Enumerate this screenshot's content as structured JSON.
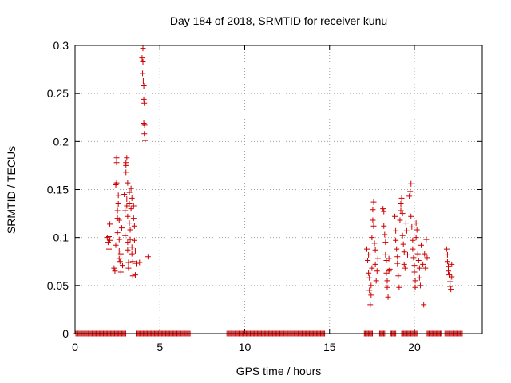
{
  "chart_data": {
    "type": "scatter",
    "title": "Day 184 of 2018, SRMTID for receiver kunu",
    "xlabel": "GPS time / hours",
    "ylabel": "SRMTID / TECUs",
    "xlim": [
      0,
      24
    ],
    "ylim": [
      0,
      0.3
    ],
    "x_ticks": [
      0,
      5,
      10,
      15,
      20
    ],
    "x_tick_labels": [
      "0",
      "5",
      "10",
      "15",
      "20"
    ],
    "y_ticks": [
      0,
      0.05,
      0.1,
      0.15,
      0.2,
      0.25,
      0.3
    ],
    "y_tick_labels": [
      "0",
      "0.05",
      "0.1",
      "0.15",
      "0.2",
      "0.25",
      "0.3"
    ],
    "grid": true,
    "marker": "plus",
    "color": "#cc0000",
    "series": [
      {
        "name": "SRMTID",
        "points": [
          [
            1.9,
            0.1
          ],
          [
            1.95,
            0.095
          ],
          [
            2.0,
            0.088
          ],
          [
            2.0,
            0.101
          ],
          [
            2.05,
            0.114
          ],
          [
            2.05,
            0.097
          ],
          [
            2.3,
            0.068
          ],
          [
            2.35,
            0.065
          ],
          [
            2.4,
            0.092
          ],
          [
            2.4,
            0.155
          ],
          [
            2.45,
            0.157
          ],
          [
            2.45,
            0.178
          ],
          [
            2.45,
            0.183
          ],
          [
            2.5,
            0.12
          ],
          [
            2.5,
            0.105
          ],
          [
            2.5,
            0.128
          ],
          [
            2.55,
            0.135
          ],
          [
            2.55,
            0.144
          ],
          [
            2.6,
            0.118
          ],
          [
            2.6,
            0.098
          ],
          [
            2.6,
            0.078
          ],
          [
            2.6,
            0.086
          ],
          [
            2.65,
            0.075
          ],
          [
            2.7,
            0.064
          ],
          [
            2.7,
            0.083
          ],
          [
            2.75,
            0.11
          ],
          [
            2.8,
            0.071
          ],
          [
            2.9,
            0.145
          ],
          [
            2.95,
            0.128
          ],
          [
            2.95,
            0.102
          ],
          [
            3.0,
            0.168
          ],
          [
            3.0,
            0.178
          ],
          [
            3.0,
            0.175
          ],
          [
            3.05,
            0.183
          ],
          [
            3.05,
            0.14
          ],
          [
            3.05,
            0.133
          ],
          [
            3.1,
            0.157
          ],
          [
            3.1,
            0.122
          ],
          [
            3.1,
            0.087
          ],
          [
            3.1,
            0.095
          ],
          [
            3.15,
            0.074
          ],
          [
            3.15,
            0.068
          ],
          [
            3.2,
            0.147
          ],
          [
            3.2,
            0.135
          ],
          [
            3.2,
            0.115
          ],
          [
            3.25,
            0.108
          ],
          [
            3.25,
            0.098
          ],
          [
            3.3,
            0.13
          ],
          [
            3.3,
            0.151
          ],
          [
            3.35,
            0.141
          ],
          [
            3.35,
            0.09
          ],
          [
            3.35,
            0.083
          ],
          [
            3.4,
            0.075
          ],
          [
            3.4,
            0.06
          ],
          [
            3.45,
            0.133
          ],
          [
            3.45,
            0.12
          ],
          [
            3.5,
            0.112
          ],
          [
            3.5,
            0.097
          ],
          [
            3.55,
            0.086
          ],
          [
            3.55,
            0.061
          ],
          [
            3.6,
            0.073
          ],
          [
            3.8,
            0.074
          ],
          [
            3.95,
            0.287
          ],
          [
            3.98,
            0.271
          ],
          [
            4.0,
            0.297
          ],
          [
            4.0,
            0.283
          ],
          [
            4.02,
            0.263
          ],
          [
            4.05,
            0.258
          ],
          [
            4.05,
            0.244
          ],
          [
            4.08,
            0.24
          ],
          [
            4.05,
            0.219
          ],
          [
            4.1,
            0.217
          ],
          [
            4.08,
            0.208
          ],
          [
            4.12,
            0.201
          ],
          [
            4.3,
            0.08
          ],
          [
            17.2,
            0.088
          ],
          [
            17.25,
            0.076
          ],
          [
            17.3,
            0.082
          ],
          [
            17.3,
            0.063
          ],
          [
            17.35,
            0.058
          ],
          [
            17.35,
            0.045
          ],
          [
            17.4,
            0.03
          ],
          [
            17.45,
            0.04
          ],
          [
            17.45,
            0.05
          ],
          [
            17.5,
            0.068
          ],
          [
            17.5,
            0.1
          ],
          [
            17.55,
            0.118
          ],
          [
            17.55,
            0.129
          ],
          [
            17.6,
            0.137
          ],
          [
            17.6,
            0.112
          ],
          [
            17.65,
            0.094
          ],
          [
            17.7,
            0.087
          ],
          [
            17.7,
            0.072
          ],
          [
            17.75,
            0.055
          ],
          [
            17.8,
            0.065
          ],
          [
            17.85,
            0.078
          ],
          [
            18.15,
            0.13
          ],
          [
            18.2,
            0.127
          ],
          [
            18.2,
            0.112
          ],
          [
            18.25,
            0.103
          ],
          [
            18.3,
            0.095
          ],
          [
            18.3,
            0.082
          ],
          [
            18.35,
            0.076
          ],
          [
            18.35,
            0.063
          ],
          [
            18.4,
            0.055
          ],
          [
            18.4,
            0.048
          ],
          [
            18.45,
            0.038
          ],
          [
            18.5,
            0.065
          ],
          [
            18.5,
            0.078
          ],
          [
            18.55,
            0.067
          ],
          [
            18.85,
            0.122
          ],
          [
            18.9,
            0.107
          ],
          [
            18.9,
            0.097
          ],
          [
            18.95,
            0.088
          ],
          [
            19.0,
            0.08
          ],
          [
            19.0,
            0.073
          ],
          [
            19.05,
            0.06
          ],
          [
            19.1,
            0.048
          ],
          [
            19.15,
            0.118
          ],
          [
            19.2,
            0.135
          ],
          [
            19.2,
            0.128
          ],
          [
            19.25,
            0.141
          ],
          [
            19.3,
            0.125
          ],
          [
            19.3,
            0.102
          ],
          [
            19.35,
            0.093
          ],
          [
            19.4,
            0.085
          ],
          [
            19.4,
            0.072
          ],
          [
            19.45,
            0.068
          ],
          [
            19.5,
            0.115
          ],
          [
            19.55,
            0.107
          ],
          [
            19.6,
            0.082
          ],
          [
            19.7,
            0.143
          ],
          [
            19.75,
            0.148
          ],
          [
            19.8,
            0.156
          ],
          [
            19.8,
            0.122
          ],
          [
            19.85,
            0.111
          ],
          [
            19.9,
            0.097
          ],
          [
            19.9,
            0.088
          ],
          [
            19.95,
            0.079
          ],
          [
            20.0,
            0.071
          ],
          [
            20.0,
            0.064
          ],
          [
            20.05,
            0.055
          ],
          [
            20.05,
            0.048
          ],
          [
            20.1,
            0.1
          ],
          [
            20.1,
            0.115
          ],
          [
            20.15,
            0.108
          ],
          [
            20.2,
            0.083
          ],
          [
            20.25,
            0.076
          ],
          [
            20.3,
            0.068
          ],
          [
            20.3,
            0.058
          ],
          [
            20.35,
            0.05
          ],
          [
            20.4,
            0.092
          ],
          [
            20.45,
            0.086
          ],
          [
            20.5,
            0.072
          ],
          [
            20.55,
            0.03
          ],
          [
            20.6,
            0.083
          ],
          [
            20.65,
            0.068
          ],
          [
            20.7,
            0.098
          ],
          [
            20.75,
            0.079
          ],
          [
            21.9,
            0.088
          ],
          [
            21.95,
            0.082
          ],
          [
            21.95,
            0.075
          ],
          [
            22.0,
            0.07
          ],
          [
            22.0,
            0.065
          ],
          [
            22.05,
            0.061
          ],
          [
            22.1,
            0.054
          ],
          [
            22.1,
            0.049
          ],
          [
            22.15,
            0.046
          ],
          [
            22.2,
            0.072
          ],
          [
            22.2,
            0.059
          ]
        ]
      }
    ],
    "zero_bands": [
      [
        0.05,
        3.0
      ],
      [
        3.6,
        6.8
      ],
      [
        8.95,
        14.75
      ],
      [
        17.05,
        17.55
      ],
      [
        17.95,
        18.25
      ],
      [
        18.6,
        18.95
      ],
      [
        19.25,
        20.15
      ],
      [
        20.75,
        21.6
      ],
      [
        21.8,
        22.85
      ]
    ]
  }
}
